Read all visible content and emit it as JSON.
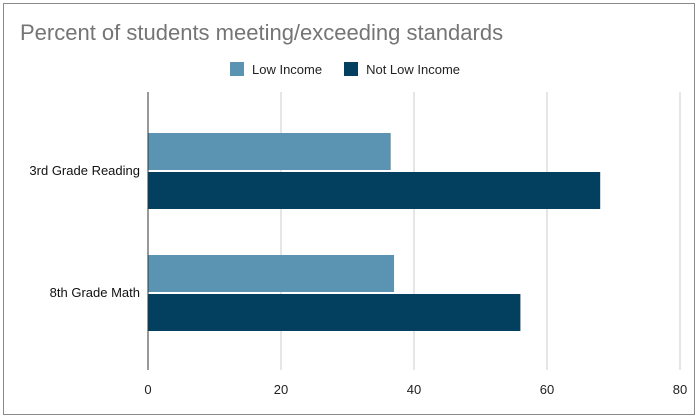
{
  "chart_data": {
    "type": "bar",
    "orientation": "horizontal",
    "title": "Percent of students meeting/exceeding standards",
    "xlabel": "",
    "ylabel": "",
    "categories": [
      "3rd Grade Reading",
      "8th Grade Math"
    ],
    "series": [
      {
        "name": "Low Income",
        "values": [
          36.5,
          37
        ],
        "color": "#5b94b2"
      },
      {
        "name": "Not Low Income",
        "values": [
          68,
          56
        ],
        "color": "#03405f"
      }
    ],
    "xlim": [
      0,
      80
    ],
    "xticks": [
      0,
      20,
      40,
      60,
      80
    ],
    "grid": true,
    "legend_position": "top-center"
  }
}
